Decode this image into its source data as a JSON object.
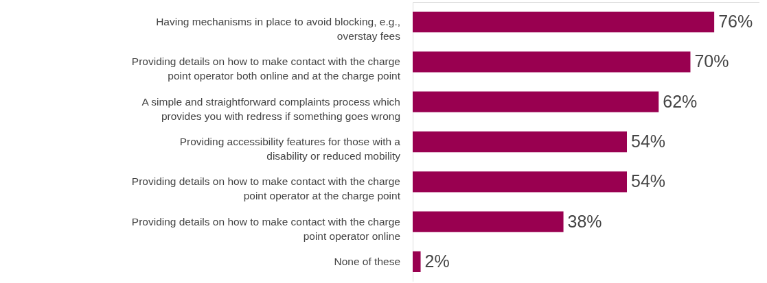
{
  "chart_data": {
    "type": "bar",
    "orientation": "horizontal",
    "categories": [
      "Having mechanisms in place to avoid blocking, e.g., overstay fees",
      "Providing details on how to make contact with the charge point operator both online and at the charge point",
      "A simple and straightforward complaints process which provides you with redress if something goes wrong",
      "Providing accessibility features for those with a disability or reduced mobility",
      "Providing details on how to make contact with the charge point operator at the charge point",
      "Providing details on how to make contact with the charge point operator online",
      "None of these"
    ],
    "values": [
      76,
      70,
      62,
      54,
      54,
      38,
      2
    ],
    "value_labels": [
      "76%",
      "70%",
      "62%",
      "54%",
      "54%",
      "38%",
      "2%"
    ],
    "color": "#990050"
  }
}
